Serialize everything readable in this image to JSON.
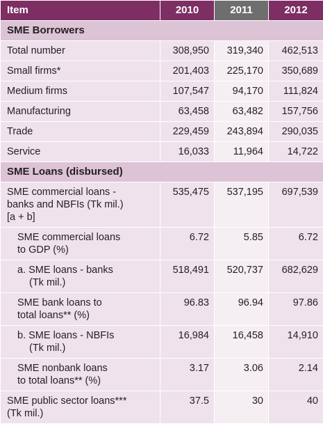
{
  "header": {
    "item": "Item",
    "years": [
      "2010",
      "2011",
      "2012"
    ]
  },
  "sections": [
    {
      "title": "SME Borrowers",
      "rows": [
        {
          "label": "Total number",
          "values": [
            "308,950",
            "319,340",
            "462,513"
          ]
        },
        {
          "label": "Small firms*",
          "values": [
            "201,403",
            "225,170",
            "350,689"
          ]
        },
        {
          "label": "Medium firms",
          "values": [
            "107,547",
            "94,170",
            "111,824"
          ]
        },
        {
          "label": "Manufacturing",
          "values": [
            "63,458",
            "63,482",
            "157,756"
          ]
        },
        {
          "label": "Trade",
          "values": [
            "229,459",
            "243,894",
            "290,035"
          ]
        },
        {
          "label": "Service",
          "values": [
            "16,033",
            "11,964",
            "14,722"
          ]
        }
      ]
    },
    {
      "title": "SME Loans (disbursed)",
      "rows": [
        {
          "label_lines": [
            "SME commercial loans -",
            "banks and NBFIs (Tk mil.)",
            "[a + b]"
          ],
          "values": [
            "535,475",
            "537,195",
            "697,539"
          ]
        },
        {
          "label_lines": [
            "SME commercial loans",
            "to GDP (%)"
          ],
          "values": [
            "6.72",
            "5.85",
            "6.72"
          ]
        },
        {
          "label_first": "a. SME loans - banks",
          "label_hang": "(Tk mil.)",
          "values": [
            "518,491",
            "520,737",
            "682,629"
          ]
        },
        {
          "label_lines": [
            "SME bank loans to",
            "total loans** (%)"
          ],
          "values": [
            "96.83",
            "96.94",
            "97.86"
          ]
        },
        {
          "label_first": "b. SME loans - NBFIs",
          "label_hang": "(Tk mil.)",
          "values": [
            "16,984",
            "16,458",
            "14,910"
          ]
        },
        {
          "label_lines": [
            "SME nonbank loans",
            "to total loans** (%)"
          ],
          "values": [
            "3.17",
            "3.06",
            "2.14"
          ]
        },
        {
          "label_lines": [
            "SME public sector loans***",
            "(Tk mil.)"
          ],
          "values": [
            "37.5",
            "30",
            "40"
          ]
        }
      ]
    }
  ]
}
